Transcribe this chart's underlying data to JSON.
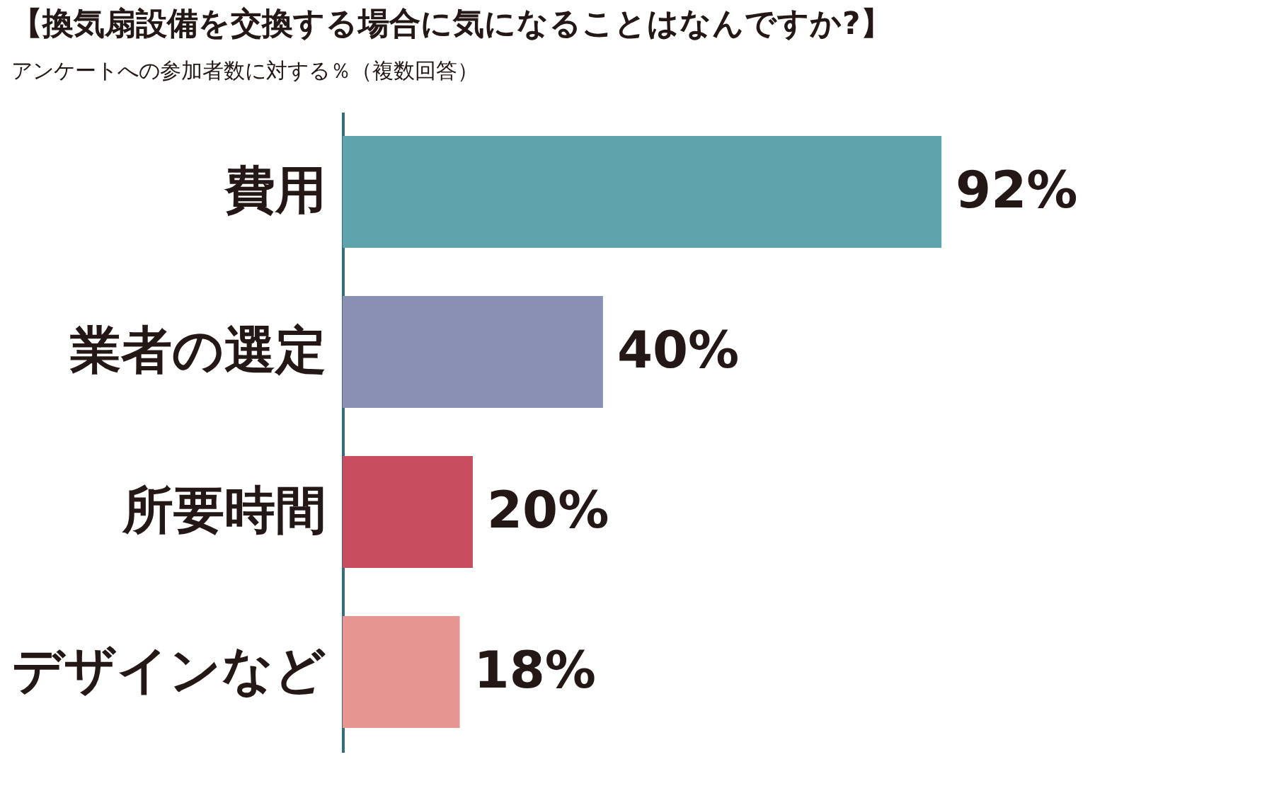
{
  "chart_data": {
    "type": "bar",
    "orientation": "horizontal",
    "title": "【換気扇設備を交換する場合に気になることはなんですか?】",
    "subtitle": "アンケートへの参加者数に対する％（複数回答）",
    "categories": [
      "費用",
      "業者の選定",
      "所要時間",
      "デザインなど"
    ],
    "values": [
      92,
      40,
      20,
      18
    ],
    "colors": [
      "#5fa3ad",
      "#8990b4",
      "#c84d5e",
      "#e69591"
    ],
    "value_labels": [
      "92%",
      "40%",
      "20%",
      "18%"
    ],
    "tick_labels": "y"
  }
}
